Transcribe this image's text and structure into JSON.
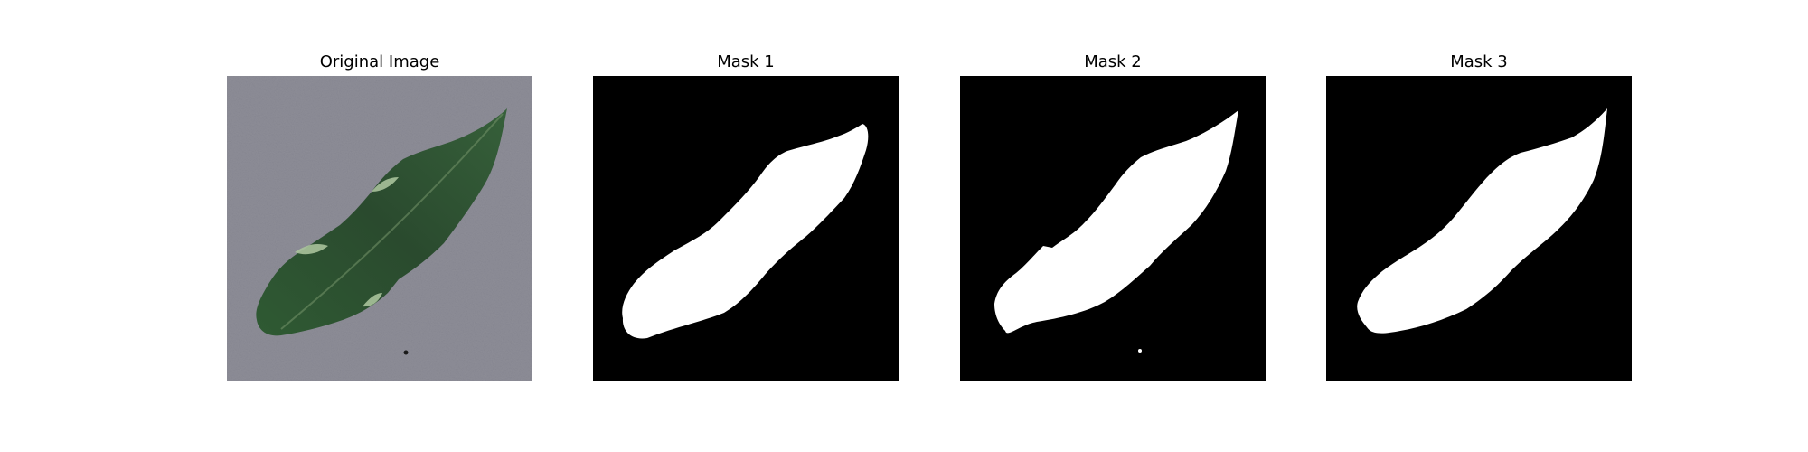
{
  "panels": [
    {
      "title": "Original Image",
      "kind": "photo"
    },
    {
      "title": "Mask 1",
      "kind": "mask"
    },
    {
      "title": "Mask 2",
      "kind": "mask"
    },
    {
      "title": "Mask 3",
      "kind": "mask"
    }
  ],
  "colors": {
    "mask_background": "#000000",
    "mask_foreground": "#ffffff",
    "photo_background": "#8e8e98",
    "leaf_dark": "#2a4a2e",
    "leaf_mid": "#3e6b42",
    "leaf_light": "#9cb88e"
  }
}
